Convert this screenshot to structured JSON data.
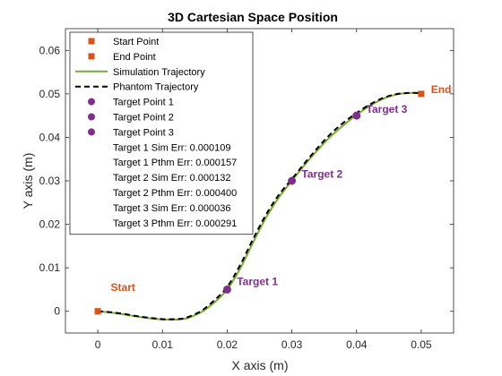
{
  "chart_data": {
    "type": "line",
    "title": "3D Cartesian Space Position",
    "xlabel": "X axis (m)",
    "ylabel": "Y axis (m)",
    "xlim": [
      -0.005,
      0.055
    ],
    "ylim": [
      -0.005,
      0.065
    ],
    "xticks": [
      0,
      0.01,
      0.02,
      0.03,
      0.04,
      0.05
    ],
    "yticks": [
      0,
      0.01,
      0.02,
      0.03,
      0.04,
      0.05,
      0.06
    ],
    "xtick_labels": [
      "0",
      "0.01",
      "0.02",
      "0.03",
      "0.04",
      "0.05"
    ],
    "ytick_labels": [
      "0",
      "0.01",
      "0.02",
      "0.03",
      "0.04",
      "0.05",
      "0.06"
    ],
    "grid": false,
    "legend_placement": "top-left",
    "colors": {
      "start_end": "#d95319",
      "simulation": "#77ac30",
      "phantom": "#000000",
      "targets": "#7e2f8e"
    },
    "series": [
      {
        "name": "Simulation Trajectory",
        "x": [
          0,
          0.002,
          0.004,
          0.006,
          0.008,
          0.01,
          0.012,
          0.013,
          0.014,
          0.016,
          0.018,
          0.02,
          0.022,
          0.024,
          0.026,
          0.028,
          0.03,
          0.032,
          0.034,
          0.036,
          0.038,
          0.04,
          0.042,
          0.044,
          0.046,
          0.048,
          0.05
        ],
        "y": [
          0,
          -0.0003,
          -0.0007,
          -0.0012,
          -0.0016,
          -0.0019,
          -0.0019,
          -0.0018,
          -0.0015,
          -0.0002,
          0.002,
          0.005,
          0.0098,
          0.0158,
          0.0215,
          0.0262,
          0.03,
          0.0337,
          0.0371,
          0.0402,
          0.0428,
          0.0452,
          0.0472,
          0.0488,
          0.0498,
          0.0502,
          0.0502
        ]
      },
      {
        "name": "Phantom Trajectory",
        "x": [
          0,
          0.002,
          0.004,
          0.006,
          0.008,
          0.01,
          0.012,
          0.013,
          0.014,
          0.016,
          0.018,
          0.02,
          0.022,
          0.024,
          0.026,
          0.028,
          0.03,
          0.032,
          0.034,
          0.036,
          0.038,
          0.04,
          0.042,
          0.044,
          0.046,
          0.048,
          0.05
        ],
        "y": [
          0,
          -0.0002,
          -0.0006,
          -0.0011,
          -0.0015,
          -0.0018,
          -0.0018,
          -0.0017,
          -0.0013,
          0.0001,
          0.0025,
          0.0056,
          0.0106,
          0.0166,
          0.0222,
          0.0268,
          0.0304,
          0.0341,
          0.0376,
          0.0408,
          0.0434,
          0.0456,
          0.0475,
          0.049,
          0.0499,
          0.0502,
          0.0502
        ]
      }
    ],
    "points": {
      "start": {
        "name": "Start Point",
        "x": 0,
        "y": 0
      },
      "end": {
        "name": "End Point",
        "x": 0.05,
        "y": 0.05
      },
      "targets": [
        {
          "name": "Target Point 1",
          "x": 0.02,
          "y": 0.005
        },
        {
          "name": "Target Point 2",
          "x": 0.03,
          "y": 0.03
        },
        {
          "name": "Target Point 3",
          "x": 0.04,
          "y": 0.045
        }
      ]
    },
    "annotations": [
      {
        "text": "Start",
        "x": 0.002,
        "y": 0.0055,
        "color": "#d95319"
      },
      {
        "text": "End",
        "x": 0.0515,
        "y": 0.051,
        "color": "#d95319"
      },
      {
        "text": "Target 1",
        "x": 0.0215,
        "y": 0.0068,
        "color": "#7e2f8e"
      },
      {
        "text": "Target 2",
        "x": 0.0315,
        "y": 0.0315,
        "color": "#7e2f8e"
      },
      {
        "text": "Target 3",
        "x": 0.0415,
        "y": 0.0465,
        "color": "#7e2f8e"
      }
    ],
    "legend": [
      {
        "label": "Start Point",
        "kind": "square",
        "color": "#d95319"
      },
      {
        "label": "End Point",
        "kind": "square",
        "color": "#d95319"
      },
      {
        "label": "Simulation Trajectory",
        "kind": "line",
        "color": "#77ac30"
      },
      {
        "label": "Phantom Trajectory",
        "kind": "dash",
        "color": "#000000"
      },
      {
        "label": "Target Point 1",
        "kind": "circle",
        "color": "#7e2f8e"
      },
      {
        "label": "Target Point 2",
        "kind": "circle",
        "color": "#7e2f8e"
      },
      {
        "label": "Target Point 3",
        "kind": "circle",
        "color": "#7e2f8e"
      },
      {
        "label": "Target 1 Sim Err: 0.000109",
        "kind": "none"
      },
      {
        "label": "Target 1 Pthm Err: 0.000157",
        "kind": "none"
      },
      {
        "label": "Target 2 Sim Err: 0.000132",
        "kind": "none"
      },
      {
        "label": "Target 2 Pthm Err: 0.000400",
        "kind": "none"
      },
      {
        "label": "Target 3 Sim Err: 0.000036",
        "kind": "none"
      },
      {
        "label": "Target 3 Pthm Err: 0.000291",
        "kind": "none"
      }
    ]
  }
}
